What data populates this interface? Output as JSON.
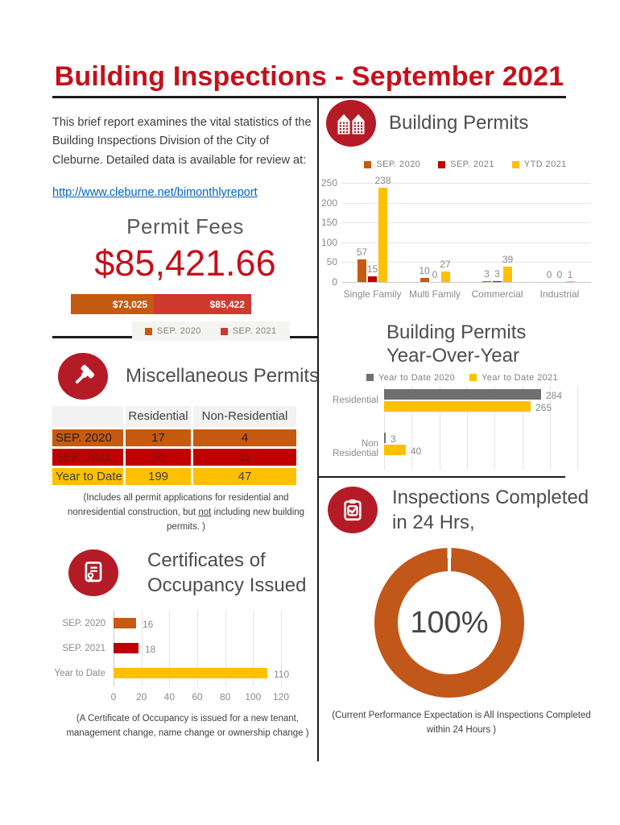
{
  "page": {
    "title": "Building Inspections - September 2021"
  },
  "intro": {
    "text": "This brief report examines the vital statistics of the Building Inspections Division of the City of Cleburne. Detailed data is available for review at:",
    "link": "http://www.cleburne.net/bimonthlyreport"
  },
  "sections": {
    "permit_fees": {
      "heading": "Permit Fees",
      "amount": "$85,421.66"
    },
    "misc": {
      "heading": "Miscellaneous Permits",
      "note_pre": "(Includes all permit applications for residential and nonresidential construction, but ",
      "note_underline": "not",
      "note_post": " including new building permits. )"
    },
    "coo": {
      "heading_line1": "Certificates of",
      "heading_line2": "Occupancy Issued",
      "note_line1": "(A Certificate of Occupancy is issued for a new tenant,",
      "note_line2": "management change, name change or ownership change )"
    },
    "building_permits": {
      "heading": "Building Permits"
    },
    "yoy": {
      "heading_line1": "Building Permits",
      "heading_line2": "Year-Over-Year"
    },
    "inspections": {
      "heading_line1": "Inspections Completed",
      "heading_line2": "in 24 Hrs,",
      "note_line1": "(Current Performance Expectation is All Inspections Completed",
      "note_line2": "within 24 Hours )"
    }
  },
  "colors": {
    "orange": "#C55A11",
    "chart_red": "#C00000",
    "stacked_bar_red": "#D0392E",
    "gold": "#FFC000",
    "gray_bar": "#6F6F6F",
    "icon_circle_red": "#B51B26",
    "title_red": "#C5101B",
    "link_blue": "#0563C1"
  },
  "chart_data": [
    {
      "id": "permit_fees",
      "type": "bar",
      "subtype": "horizontal-stacked",
      "title": "Permit Fees",
      "total_label": "$85,421.66",
      "series": [
        {
          "name": "SEP. 2020",
          "value": 73025,
          "label": "$73,025",
          "color": "#C55A11"
        },
        {
          "name": "SEP. 2021",
          "value": 85422,
          "label": "$85,422",
          "color": "#D0392E"
        }
      ],
      "legend_position": "bottom"
    },
    {
      "id": "misc_permits",
      "type": "table",
      "title": "Miscellaneous Permits",
      "columns": [
        "",
        "Residential",
        "Non-Residential"
      ],
      "rows": [
        {
          "label": "SEP. 2020",
          "values": [
            "17",
            "4"
          ],
          "bg": "#C55A11",
          "fg": "#1F1F1F"
        },
        {
          "label": "SEP. 2021",
          "values": [
            "30",
            "11"
          ],
          "bg": "#C00000",
          "fg": "#7D1410"
        },
        {
          "label": "Year to Date",
          "values": [
            "199",
            "47"
          ],
          "bg": "#FFC000",
          "fg": "#404040"
        }
      ]
    },
    {
      "id": "building_permits",
      "type": "bar",
      "title": "Building Permits",
      "categories": [
        "Single Family",
        "Multi Family",
        "Commercial",
        "Industrial"
      ],
      "series": [
        {
          "name": "SEP. 2020",
          "color": "#C55A11",
          "values": [
            57,
            10,
            3,
            0
          ]
        },
        {
          "name": "SEP. 2021",
          "color": "#C00000",
          "values": [
            15,
            0,
            3,
            0
          ]
        },
        {
          "name": "YTD 2021",
          "color": "#FFC000",
          "values": [
            238,
            27,
            39,
            1
          ]
        }
      ],
      "ylim": [
        0,
        250
      ],
      "yticks": [
        0,
        50,
        100,
        150,
        200,
        250
      ],
      "grid": true,
      "legend_position": "top"
    },
    {
      "id": "yoy",
      "type": "bar",
      "orientation": "horizontal",
      "title": "Building Permits Year-Over-Year",
      "categories": [
        "Residential",
        "Non Residential"
      ],
      "series": [
        {
          "name": "Year to Date 2020",
          "color": "#6F6F6F",
          "values": [
            284,
            3
          ]
        },
        {
          "name": "Year to Date 2021",
          "color": "#FFC000",
          "values": [
            265,
            40
          ]
        }
      ],
      "xlim": [
        0,
        375
      ],
      "grid": true,
      "legend_position": "top"
    },
    {
      "id": "coo",
      "type": "bar",
      "orientation": "horizontal",
      "title": "Certificates of Occupancy Issued",
      "categories": [
        "SEP. 2020",
        "SEP. 2021",
        "Year to Date"
      ],
      "values": [
        16,
        18,
        110
      ],
      "bar_colors": [
        "#C55A11",
        "#C00000",
        "#FFC000"
      ],
      "xlim": [
        0,
        120
      ],
      "xticks": [
        0,
        20,
        40,
        60,
        80,
        100,
        120
      ],
      "grid": true
    },
    {
      "id": "inspections",
      "type": "donut",
      "title": "Inspections Completed in 24 Hrs",
      "value": 100,
      "label": "100%",
      "color": "#C2571A"
    }
  ]
}
